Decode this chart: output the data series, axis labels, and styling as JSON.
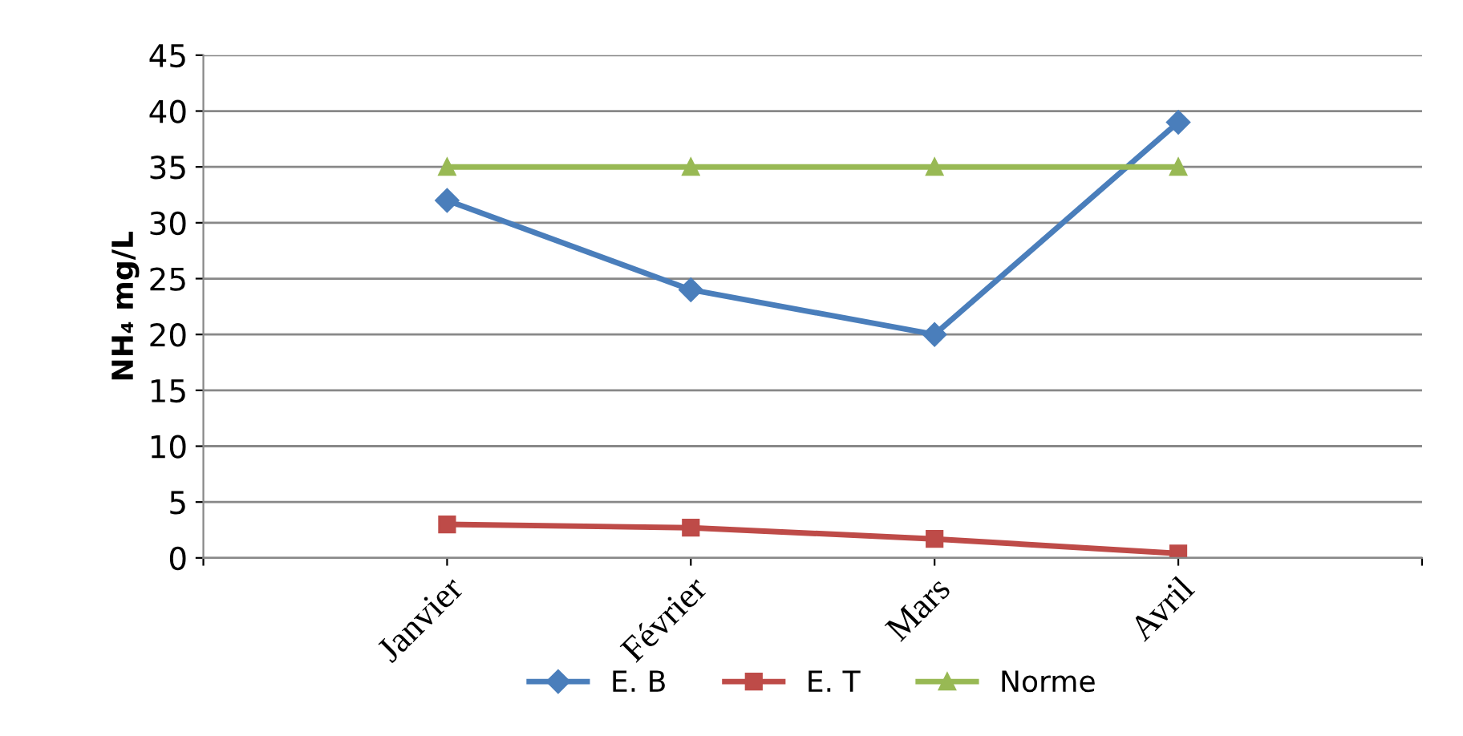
{
  "chart_data": {
    "type": "line",
    "ylabel": "NH₄ mg/L",
    "categories": [
      null,
      "Janvier",
      "Février",
      "Mars",
      "Avril",
      null
    ],
    "series": [
      {
        "name": "E. B",
        "color": "#4a7ebb",
        "marker": "diamond",
        "values": [
          null,
          32,
          24,
          20,
          39,
          null
        ]
      },
      {
        "name": "E. T",
        "color": "#be4b48",
        "marker": "square",
        "values": [
          null,
          3,
          2.7,
          1.7,
          0.4,
          null
        ]
      },
      {
        "name": "Norme",
        "color": "#98b954",
        "marker": "triangle",
        "values": [
          null,
          35,
          35,
          35,
          35,
          null
        ]
      }
    ],
    "ylim": [
      0,
      45
    ],
    "yticks": [
      0,
      5,
      10,
      15,
      20,
      25,
      30,
      35,
      40,
      45
    ],
    "grid": "y",
    "legend": "bottom",
    "line_style": "solid"
  }
}
